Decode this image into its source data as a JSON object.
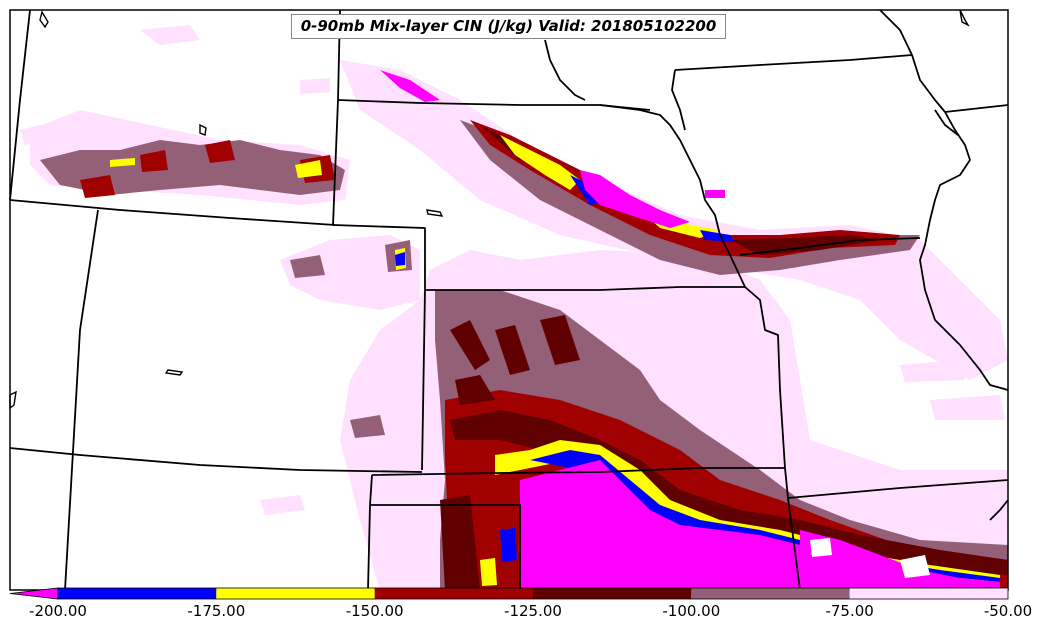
{
  "title": "0-90mb Mix-layer CIN (J/kg) Valid: 201805102200",
  "colorbar": {
    "ticks": [
      "-200.00",
      "-175.00",
      "-150.00",
      "-125.00",
      "-100.00",
      "-75.00",
      "-50.00"
    ],
    "tick_values": [
      -200,
      -175,
      -150,
      -125,
      -100,
      -75,
      -50
    ],
    "bins": [
      {
        "from": -200,
        "to": -175,
        "color": "#0000ff"
      },
      {
        "from": -175,
        "to": -150,
        "color": "#ffff00"
      },
      {
        "from": -150,
        "to": -125,
        "color": "#a00000"
      },
      {
        "from": -125,
        "to": -100,
        "color": "#600000"
      },
      {
        "from": -100,
        "to": -75,
        "color": "#946078"
      },
      {
        "from": -75,
        "to": -50,
        "color": "#ffe0ff"
      }
    ],
    "extend_low_color": "#ff00ff"
  },
  "colors": {
    "magenta": "#ff00ff",
    "blue": "#0000ff",
    "yellow": "#ffff00",
    "red": "#a00000",
    "dark_red": "#600000",
    "mauve": "#946078",
    "light_pink": "#ffe0ff"
  }
}
